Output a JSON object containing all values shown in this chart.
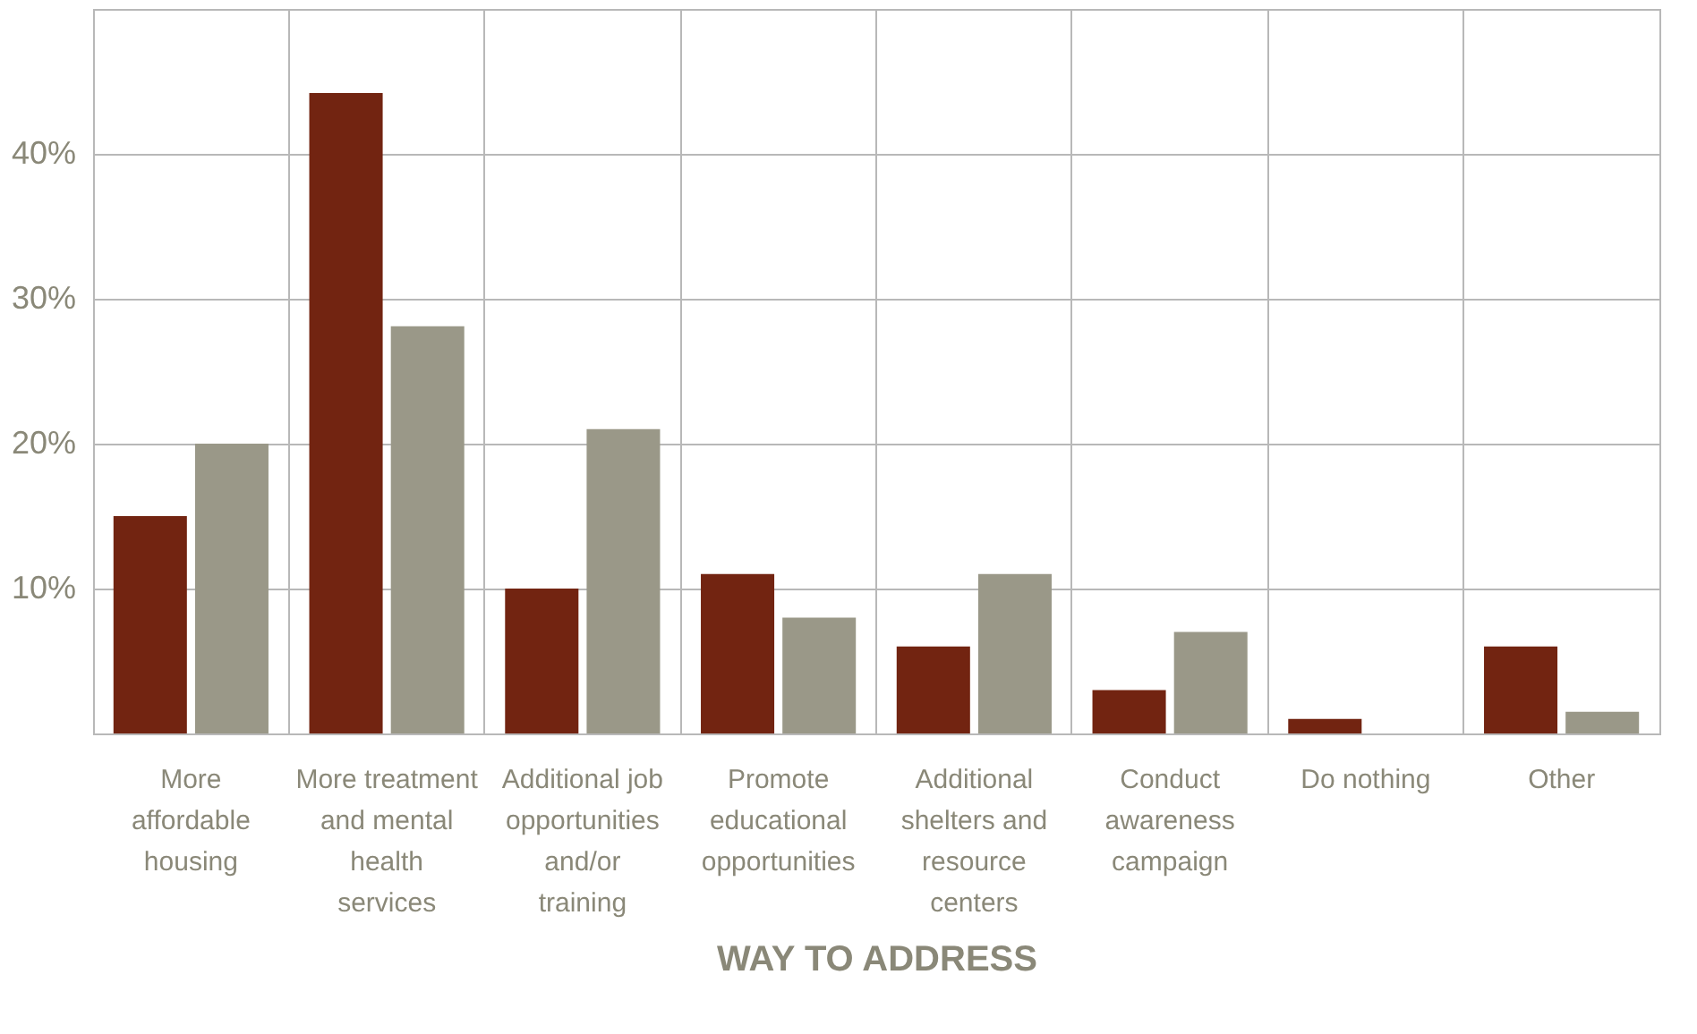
{
  "chart_data": {
    "type": "bar",
    "xlabel": "WAY TO ADDRESS",
    "categories": [
      "More affordable housing",
      "More treatment and mental health services",
      "Additional job opportunities and/or training",
      "Promote educational opportunities",
      "Additional shelters and resource centers",
      "Conduct awareness campaign",
      "Do nothing",
      "Other"
    ],
    "series": [
      {
        "color": "#722411",
        "values": [
          15,
          44.2,
          10,
          11,
          6,
          3,
          1,
          6
        ]
      },
      {
        "color": "#9a9888",
        "values": [
          20,
          28.1,
          21,
          8,
          11,
          7,
          0,
          1.5
        ]
      }
    ],
    "ylim": [
      0,
      50
    ],
    "yticks": [
      {
        "value": 10,
        "label": "10%"
      },
      {
        "value": 20,
        "label": "20%"
      },
      {
        "value": 30,
        "label": "30%"
      },
      {
        "value": 40,
        "label": "40%"
      }
    ],
    "grid": true
  }
}
